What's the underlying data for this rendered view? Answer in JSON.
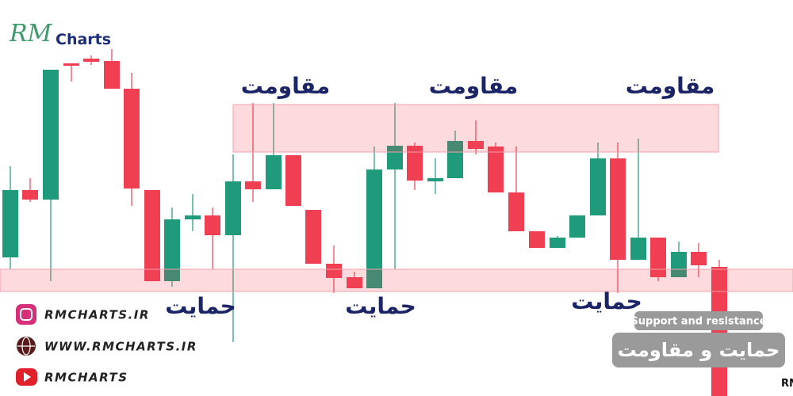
{
  "logo": {
    "mark": "RM",
    "name": "Charts"
  },
  "labels": {
    "resistance": [
      "مقاومت",
      "مقاومت",
      "مقاومت"
    ],
    "support": [
      "حمایت",
      "حمایت",
      "حمایت"
    ]
  },
  "contacts": [
    "RMCHARTS.IR",
    "WWW.RMCHARTS.IR",
    "RMCHARTS"
  ],
  "badge": {
    "subtitle": "Support and resistance",
    "title": "حمایت و مقاومت"
  },
  "footer": "دوره تئوری جامع بازار های مالی RMCHARTS"
}
